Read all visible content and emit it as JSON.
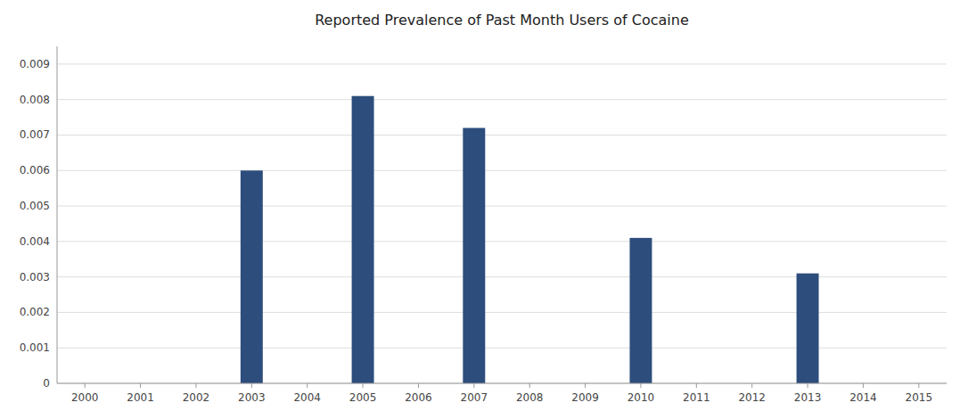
{
  "chart_data": {
    "type": "bar",
    "title": "Reported Prevalence of Past Month Users of Cocaine",
    "x": [
      2003,
      2005,
      2007,
      2010,
      2013
    ],
    "values": [
      0.006,
      0.0081,
      0.0072,
      0.0041,
      0.0031
    ],
    "color": "#2d4d7c",
    "xlim": [
      1999.5,
      2015.5
    ],
    "ylim": [
      0,
      0.0095
    ],
    "xticks": [
      2000,
      2001,
      2002,
      2003,
      2004,
      2005,
      2006,
      2007,
      2008,
      2009,
      2010,
      2011,
      2012,
      2013,
      2014,
      2015
    ],
    "yticks": [
      0,
      0.001,
      0.002,
      0.003,
      0.004,
      0.005,
      0.006,
      0.007,
      0.008,
      0.009
    ],
    "grid": true
  }
}
